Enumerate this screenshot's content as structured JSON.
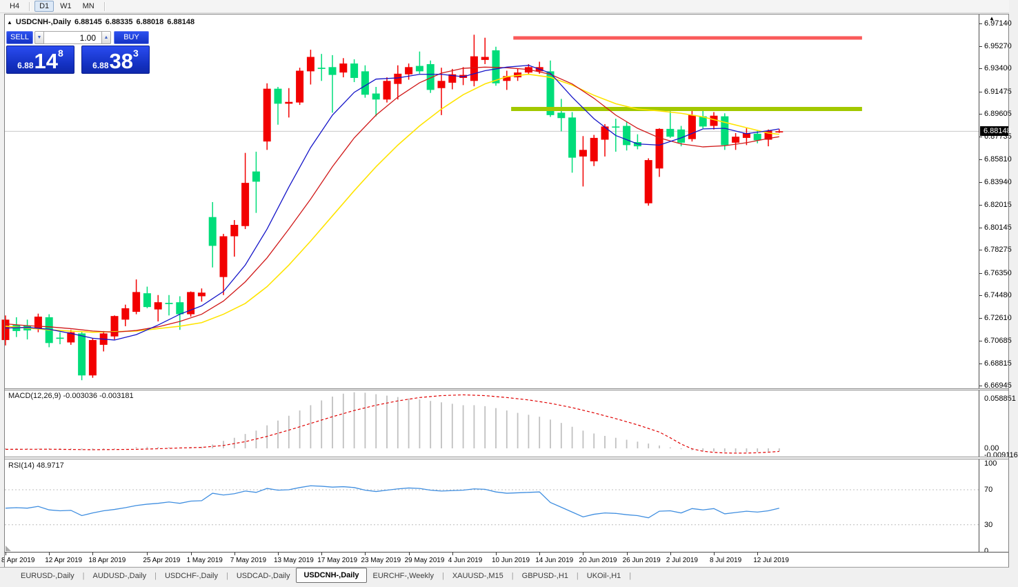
{
  "toolbar": {
    "timeframes": [
      {
        "label": "H4",
        "active": false
      },
      {
        "label": "D1",
        "active": true
      },
      {
        "label": "W1",
        "active": false
      },
      {
        "label": "MN",
        "active": false
      }
    ]
  },
  "chart_header": {
    "collapse_icon": "▲",
    "symbol": "USDCNH-,Daily",
    "open": "6.88145",
    "high": "6.88335",
    "low": "6.88018",
    "close": "6.88148"
  },
  "trade_panel": {
    "sell_label": "SELL",
    "buy_label": "BUY",
    "volume": "1.00",
    "volume_down_icon": "▼",
    "volume_up_icon": "▲",
    "sell_price": {
      "base": "6.88",
      "big": "14",
      "sup": "8"
    },
    "buy_price": {
      "base": "6.88",
      "big": "38",
      "sup": "3"
    }
  },
  "price_axis": {
    "arrow_icon": "▲",
    "current": "6.88148",
    "ticks": [
      "6.97140",
      "6.95270",
      "6.93400",
      "6.91475",
      "6.89605",
      "6.87735",
      "6.85810",
      "6.83940",
      "6.82015",
      "6.80145",
      "6.78275",
      "6.76350",
      "6.74480",
      "6.72610",
      "6.70685",
      "6.68815",
      "6.66945"
    ]
  },
  "macd_panel": {
    "label": "MACD(12,26,9)",
    "value_main": "-0.003036",
    "value_signal": "-0.003181",
    "axis_top": "0.058851",
    "axis_zero": "0.00",
    "axis_bottom": "-0.009116"
  },
  "rsi_panel": {
    "label": "RSI(14)",
    "value": "48.9717",
    "axis_labels": [
      "100",
      "70",
      "30",
      "0"
    ]
  },
  "date_axis": {
    "labels": [
      {
        "text": "8 Apr 2019",
        "index": 0
      },
      {
        "text": "12 Apr 2019",
        "index": 4
      },
      {
        "text": "18 Apr 2019",
        "index": 8
      },
      {
        "text": "25 Apr 2019",
        "index": 13
      },
      {
        "text": "1 May 2019",
        "index": 17
      },
      {
        "text": "7 May 2019",
        "index": 21
      },
      {
        "text": "13 May 2019",
        "index": 25
      },
      {
        "text": "17 May 2019",
        "index": 29
      },
      {
        "text": "23 May 2019",
        "index": 33
      },
      {
        "text": "29 May 2019",
        "index": 37
      },
      {
        "text": "4 Jun 2019",
        "index": 41
      },
      {
        "text": "10 Jun 2019",
        "index": 45
      },
      {
        "text": "14 Jun 2019",
        "index": 49
      },
      {
        "text": "20 Jun 2019",
        "index": 53
      },
      {
        "text": "26 Jun 2019",
        "index": 57
      },
      {
        "text": "2 Jul 2019",
        "index": 61
      },
      {
        "text": "8 Jul 2019",
        "index": 65
      },
      {
        "text": "12 Jul 2019",
        "index": 69
      }
    ]
  },
  "tab_bar": {
    "active_index": 4,
    "tabs": [
      "EURUSD-,Daily",
      "AUDUSD-,Daily",
      "USDCHF-,Daily",
      "USDCAD-,Daily",
      "USDCNH-,Daily",
      "EURCHF-,Weekly",
      "XAUUSD-,M15",
      "GBPUSD-,H1",
      "UKOil-,H1"
    ]
  },
  "chart_data": {
    "type": "candlestick",
    "title": "USDCNH-,Daily",
    "ylim": [
      6.66945,
      6.97485
    ],
    "current_price": 6.88148,
    "colors": {
      "up": "#f20000",
      "down": "#00dd7a",
      "ma_fast": "#1414c8",
      "ma_mid": "#d01818",
      "ma_slow": "#ffe400",
      "macd_hist": "#c0c0c0",
      "macd_signal": "#e00000",
      "rsi": "#3f8ee0",
      "resistance": "#fa5a5a",
      "support": "#a2c800",
      "bid_line": "#c8c8c8",
      "rsi_level": "#bcbcbc"
    },
    "levels": {
      "resistance": {
        "price": 6.9593,
        "from_index": 46.6,
        "to_index": 78.6,
        "thickness": 5
      },
      "support": {
        "price": 6.9001,
        "from_index": 46.4,
        "to_index": 78.6,
        "thickness": 6
      }
    },
    "candles": [
      [
        6.7075,
        6.728,
        6.703,
        6.7245
      ],
      [
        6.72,
        6.7265,
        6.71,
        6.715
      ],
      [
        6.7195,
        6.7245,
        6.708,
        6.7155
      ],
      [
        6.717,
        6.7295,
        6.714,
        6.727
      ],
      [
        6.7265,
        6.729,
        6.7015,
        6.705
      ],
      [
        6.7095,
        6.714,
        6.704,
        6.7085
      ],
      [
        6.7055,
        6.716,
        6.7035,
        6.714
      ],
      [
        6.713,
        6.715,
        6.674,
        6.678
      ],
      [
        6.678,
        6.709,
        6.676,
        6.7075
      ],
      [
        6.7035,
        6.715,
        6.698,
        6.713
      ],
      [
        6.7105,
        6.728,
        6.708,
        6.7275
      ],
      [
        6.7245,
        6.737,
        6.719,
        6.734
      ],
      [
        6.731,
        6.758,
        6.729,
        6.7475
      ],
      [
        6.7465,
        6.752,
        6.734,
        6.735
      ],
      [
        6.733,
        6.745,
        6.723,
        6.739
      ],
      [
        6.7385,
        6.745,
        6.728,
        6.7375
      ],
      [
        6.739,
        6.744,
        6.716,
        6.729
      ],
      [
        6.729,
        6.748,
        6.727,
        6.7475
      ],
      [
        6.744,
        6.7505,
        6.7395,
        6.747
      ],
      [
        6.81,
        6.8225,
        6.768,
        6.786
      ],
      [
        6.76,
        6.796,
        6.745,
        6.794
      ],
      [
        6.794,
        6.8075,
        6.777,
        6.8035
      ],
      [
        6.8025,
        6.8635,
        6.8,
        6.8385
      ],
      [
        6.848,
        6.8645,
        6.8135,
        6.8395
      ],
      [
        6.873,
        6.9215,
        6.866,
        6.917
      ],
      [
        6.917,
        6.9185,
        6.887,
        6.9045
      ],
      [
        6.9045,
        6.9175,
        6.893,
        6.906
      ],
      [
        6.9055,
        6.9345,
        6.9035,
        6.932
      ],
      [
        6.9315,
        6.9495,
        6.9205,
        6.9435
      ],
      [
        6.9345,
        6.946,
        6.9235,
        6.9335
      ],
      [
        6.935,
        6.945,
        6.897,
        6.9285
      ],
      [
        6.9305,
        6.9425,
        6.9265,
        6.938
      ],
      [
        6.938,
        6.9415,
        6.9225,
        6.926
      ],
      [
        6.9315,
        6.9365,
        6.9095,
        6.912
      ],
      [
        6.913,
        6.9185,
        6.894,
        6.908
      ],
      [
        6.908,
        6.9265,
        6.9055,
        6.9235
      ],
      [
        6.921,
        6.9365,
        6.908,
        6.9295
      ],
      [
        6.929,
        6.938,
        6.9245,
        6.935
      ],
      [
        6.936,
        6.948,
        6.9295,
        6.9315
      ],
      [
        6.9375,
        6.9405,
        6.9135,
        6.916
      ],
      [
        6.9175,
        6.9345,
        6.895,
        6.9235
      ],
      [
        6.922,
        6.9335,
        6.9165,
        6.929
      ],
      [
        6.926,
        6.935,
        6.92,
        6.9285
      ],
      [
        6.9235,
        6.962,
        6.919,
        6.944
      ],
      [
        6.941,
        6.9595,
        6.9375,
        6.9435
      ],
      [
        6.949,
        6.952,
        6.9195,
        6.9215
      ],
      [
        6.9235,
        6.932,
        6.916,
        6.9275
      ],
      [
        6.9265,
        6.9335,
        6.9235,
        6.9305
      ],
      [
        6.9305,
        6.9375,
        6.9285,
        6.935
      ],
      [
        6.9315,
        6.9395,
        6.9295,
        6.935
      ],
      [
        6.9315,
        6.9405,
        6.8935,
        6.895
      ],
      [
        6.897,
        6.9085,
        6.8815,
        6.8925
      ],
      [
        6.893,
        6.8975,
        6.847,
        6.8595
      ],
      [
        6.8605,
        6.8775,
        6.8355,
        6.866
      ],
      [
        6.8565,
        6.8785,
        6.8525,
        6.876
      ],
      [
        6.8745,
        6.8875,
        6.8605,
        6.8855
      ],
      [
        6.8855,
        6.892,
        6.8645,
        6.885
      ],
      [
        6.886,
        6.8895,
        6.8655,
        6.87
      ],
      [
        6.8725,
        6.879,
        6.8665,
        6.869
      ],
      [
        6.8215,
        6.859,
        6.8195,
        6.8575
      ],
      [
        6.8505,
        6.884,
        6.8435,
        6.8835
      ],
      [
        6.8835,
        6.899,
        6.876,
        6.877
      ],
      [
        6.883,
        6.886,
        6.869,
        6.872
      ],
      [
        6.875,
        6.8995,
        6.873,
        6.895
      ],
      [
        6.894,
        6.8985,
        6.884,
        6.8855
      ],
      [
        6.886,
        6.8975,
        6.883,
        6.8945
      ],
      [
        6.894,
        6.8965,
        6.866,
        6.87
      ],
      [
        6.872,
        6.88,
        6.866,
        6.877
      ],
      [
        6.876,
        6.884,
        6.87,
        6.88
      ],
      [
        6.8795,
        6.8825,
        6.8715,
        6.874
      ],
      [
        6.8745,
        6.883,
        6.869,
        6.882
      ],
      [
        6.88145,
        6.88335,
        6.88018,
        6.88148
      ]
    ],
    "ma_fast": [
      [
        0,
        6.7175
      ],
      [
        2,
        6.718
      ],
      [
        4,
        6.7165
      ],
      [
        6,
        6.713
      ],
      [
        8,
        6.709
      ],
      [
        10,
        6.7075
      ],
      [
        12,
        6.712
      ],
      [
        14,
        6.72
      ],
      [
        16,
        6.729
      ],
      [
        18,
        6.736
      ],
      [
        20,
        6.748
      ],
      [
        22,
        6.77
      ],
      [
        24,
        6.8
      ],
      [
        26,
        6.835
      ],
      [
        28,
        6.868
      ],
      [
        30,
        6.895
      ],
      [
        32,
        6.914
      ],
      [
        34,
        6.925
      ],
      [
        36,
        6.926
      ],
      [
        38,
        6.929
      ],
      [
        40,
        6.929
      ],
      [
        42,
        6.927
      ],
      [
        44,
        6.932
      ],
      [
        46,
        6.935
      ],
      [
        48,
        6.9365
      ],
      [
        50,
        6.93
      ],
      [
        52,
        6.91
      ],
      [
        54,
        6.892
      ],
      [
        56,
        6.878
      ],
      [
        58,
        6.871
      ],
      [
        60,
        6.87
      ],
      [
        62,
        6.876
      ],
      [
        64,
        6.8835
      ],
      [
        66,
        6.884
      ],
      [
        68,
        6.8795
      ],
      [
        70,
        6.882
      ],
      [
        71,
        6.8835
      ]
    ],
    "ma_mid": [
      [
        0,
        6.721
      ],
      [
        2,
        6.7195
      ],
      [
        4,
        6.7185
      ],
      [
        6,
        6.717
      ],
      [
        8,
        6.715
      ],
      [
        10,
        6.714
      ],
      [
        12,
        6.7155
      ],
      [
        14,
        6.7185
      ],
      [
        16,
        6.723
      ],
      [
        18,
        6.729
      ],
      [
        20,
        6.74
      ],
      [
        22,
        6.756
      ],
      [
        24,
        6.776
      ],
      [
        26,
        6.8
      ],
      [
        28,
        6.825
      ],
      [
        30,
        6.852
      ],
      [
        32,
        6.876
      ],
      [
        34,
        6.895
      ],
      [
        36,
        6.91
      ],
      [
        38,
        6.922
      ],
      [
        40,
        6.93
      ],
      [
        42,
        6.934
      ],
      [
        44,
        6.935
      ],
      [
        46,
        6.9345
      ],
      [
        48,
        6.933
      ],
      [
        50,
        6.929
      ],
      [
        52,
        6.921
      ],
      [
        54,
        6.909
      ],
      [
        56,
        6.895
      ],
      [
        58,
        6.884
      ],
      [
        60,
        6.876
      ],
      [
        62,
        6.871
      ],
      [
        64,
        6.8685
      ],
      [
        66,
        6.8695
      ],
      [
        68,
        6.872
      ],
      [
        70,
        6.8755
      ],
      [
        71,
        6.877
      ]
    ],
    "ma_slow": [
      [
        0,
        6.719
      ],
      [
        4,
        6.716
      ],
      [
        8,
        6.714
      ],
      [
        12,
        6.715
      ],
      [
        16,
        6.719
      ],
      [
        18,
        6.722
      ],
      [
        20,
        6.729
      ],
      [
        22,
        6.738
      ],
      [
        24,
        6.752
      ],
      [
        26,
        6.77
      ],
      [
        28,
        6.79
      ],
      [
        30,
        6.811
      ],
      [
        32,
        6.832
      ],
      [
        34,
        6.852
      ],
      [
        36,
        6.87
      ],
      [
        38,
        6.886
      ],
      [
        40,
        6.9
      ],
      [
        42,
        6.912
      ],
      [
        44,
        6.921
      ],
      [
        46,
        6.927
      ],
      [
        48,
        6.929
      ],
      [
        50,
        6.9265
      ],
      [
        52,
        6.92
      ],
      [
        54,
        6.9115
      ],
      [
        56,
        6.9045
      ],
      [
        58,
        6.9
      ],
      [
        60,
        6.8985
      ],
      [
        62,
        6.8965
      ],
      [
        64,
        6.8935
      ],
      [
        66,
        6.889
      ],
      [
        68,
        6.8845
      ],
      [
        70,
        6.88
      ],
      [
        71,
        6.879
      ]
    ],
    "macd": {
      "histogram": [
        -0.0008,
        -0.001,
        -0.0009,
        -0.0006,
        -0.001,
        -0.0013,
        -0.001,
        -0.0018,
        -0.002,
        -0.0015,
        -0.0008,
        0.0002,
        0.0012,
        0.0016,
        0.0014,
        0.0011,
        0.0009,
        0.0013,
        0.0016,
        0.004,
        0.0078,
        0.011,
        0.015,
        0.0185,
        0.024,
        0.029,
        0.034,
        0.0395,
        0.045,
        0.05,
        0.054,
        0.057,
        0.0585,
        0.058,
        0.0565,
        0.055,
        0.0535,
        0.052,
        0.051,
        0.0495,
        0.048,
        0.0465,
        0.045,
        0.045,
        0.044,
        0.042,
        0.0395,
        0.037,
        0.035,
        0.033,
        0.03,
        0.0265,
        0.0225,
        0.0185,
        0.0155,
        0.013,
        0.011,
        0.009,
        0.007,
        0.005,
        0.003,
        0.001,
        -0.0008,
        -0.002,
        -0.0028,
        -0.0033,
        -0.0038,
        -0.0042,
        -0.004,
        -0.0038,
        -0.0034,
        -0.003036
      ],
      "signal_points": [
        [
          0,
          -0.001
        ],
        [
          4,
          -0.0009
        ],
        [
          8,
          -0.0014
        ],
        [
          12,
          -0.001
        ],
        [
          14,
          -0.0004
        ],
        [
          16,
          0.0004
        ],
        [
          18,
          0.001
        ],
        [
          20,
          0.003
        ],
        [
          22,
          0.007
        ],
        [
          24,
          0.0125
        ],
        [
          26,
          0.019
        ],
        [
          28,
          0.026
        ],
        [
          30,
          0.033
        ],
        [
          32,
          0.0395
        ],
        [
          34,
          0.045
        ],
        [
          36,
          0.0495
        ],
        [
          38,
          0.053
        ],
        [
          40,
          0.055
        ],
        [
          42,
          0.0558
        ],
        [
          44,
          0.055
        ],
        [
          46,
          0.053
        ],
        [
          48,
          0.0505
        ],
        [
          50,
          0.047
        ],
        [
          52,
          0.0425
        ],
        [
          54,
          0.037
        ],
        [
          56,
          0.031
        ],
        [
          58,
          0.0245
        ],
        [
          60,
          0.017
        ],
        [
          61,
          0.011
        ],
        [
          62,
          0.0045
        ],
        [
          63,
          -0.0005
        ],
        [
          64,
          -0.003
        ],
        [
          65,
          -0.0042
        ],
        [
          66,
          -0.0048
        ],
        [
          67,
          -0.005
        ],
        [
          68,
          -0.0049
        ],
        [
          69,
          -0.0046
        ],
        [
          70,
          -0.004
        ],
        [
          71,
          -0.003181
        ]
      ]
    },
    "rsi": {
      "levels": [
        70,
        30
      ],
      "values": [
        49,
        49.5,
        49,
        51,
        47,
        46,
        46.5,
        40.5,
        43.5,
        46,
        47.5,
        49.5,
        52,
        53.5,
        54.5,
        56,
        54.5,
        57,
        57.5,
        66,
        64,
        65.5,
        68.5,
        67,
        71.5,
        69.5,
        70,
        72.5,
        74.5,
        74,
        73,
        73.5,
        72.5,
        69.5,
        68,
        69.5,
        71,
        72,
        71.5,
        69.5,
        68.5,
        69,
        69.5,
        71,
        70.5,
        67.5,
        66,
        66.5,
        67,
        67.5,
        55.5,
        50,
        44.5,
        39,
        42,
        43.5,
        43,
        41.5,
        40.5,
        38,
        45.5,
        46,
        43.5,
        48.5,
        47,
        48.5,
        42.5,
        44,
        45.5,
        44.5,
        46,
        48.97
      ]
    }
  }
}
